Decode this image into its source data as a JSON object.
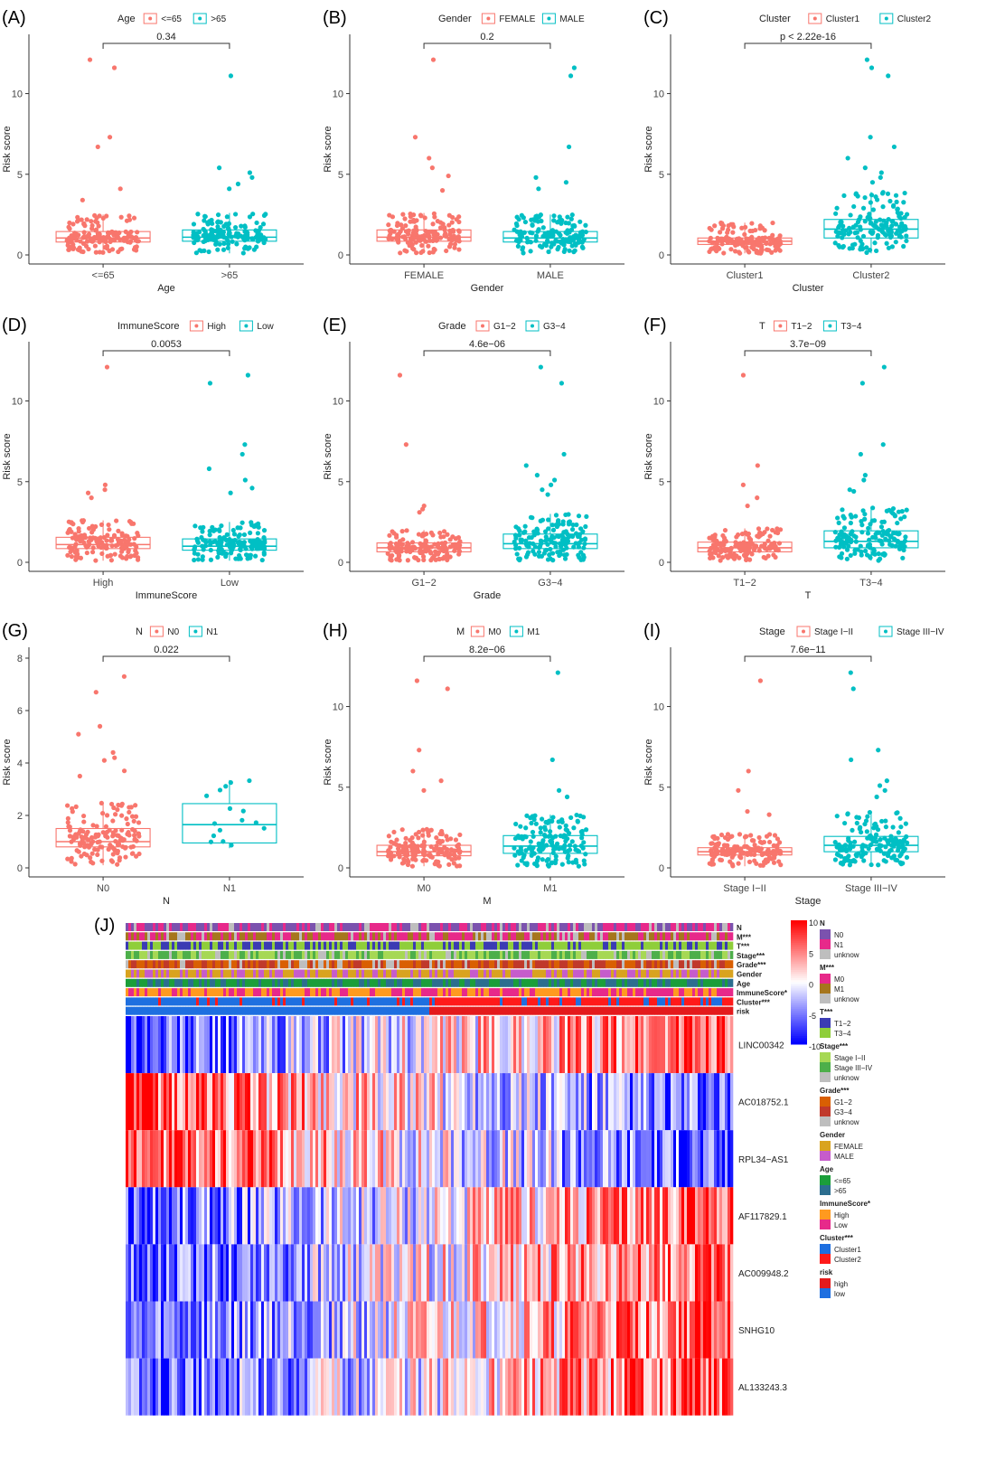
{
  "colors": {
    "group1": "#F8766D",
    "group2": "#00BFC4",
    "heat_high": "#FF0000",
    "heat_mid": "#FFFFFF",
    "heat_low": "#0000FF"
  },
  "panels": [
    {
      "tag": "(A)",
      "legend_title": "Age",
      "groups": [
        "<=65",
        ">65"
      ],
      "xlabel": "Age",
      "ylabel": "Risk score",
      "p": "0.34",
      "yticks": [
        0,
        5,
        10
      ],
      "ymax": 13
    },
    {
      "tag": "(B)",
      "legend_title": "Gender",
      "groups": [
        "FEMALE",
        "MALE"
      ],
      "xlabel": "Gender",
      "ylabel": "Risk score",
      "p": "0.2",
      "yticks": [
        0,
        5,
        10
      ],
      "ymax": 13
    },
    {
      "tag": "(C)",
      "legend_title": "Cluster",
      "groups": [
        "Cluster1",
        "Cluster2"
      ],
      "xlabel": "Cluster",
      "ylabel": "Risk score",
      "p": "p < 2.22e-16",
      "yticks": [
        0,
        5,
        10
      ],
      "ymax": 13
    },
    {
      "tag": "(D)",
      "legend_title": "ImmuneScore",
      "groups": [
        "High",
        "Low"
      ],
      "xlabel": "ImmuneScore",
      "ylabel": "Risk score",
      "p": "0.0053",
      "yticks": [
        0,
        5,
        10
      ],
      "ymax": 13
    },
    {
      "tag": "(E)",
      "legend_title": "Grade",
      "groups": [
        "G1−2",
        "G3−4"
      ],
      "xlabel": "Grade",
      "ylabel": "Risk score",
      "p": "4.6e−06",
      "yticks": [
        0,
        5,
        10
      ],
      "ymax": 13
    },
    {
      "tag": "(F)",
      "legend_title": "T",
      "groups": [
        "T1−2",
        "T3−4"
      ],
      "xlabel": "T",
      "ylabel": "Risk score",
      "p": "3.7e−09",
      "yticks": [
        0,
        5,
        10
      ],
      "ymax": 13
    },
    {
      "tag": "(G)",
      "legend_title": "N",
      "groups": [
        "N0",
        "N1"
      ],
      "xlabel": "N",
      "ylabel": "Risk score",
      "p": "0.022",
      "yticks": [
        0,
        2,
        4,
        6,
        8
      ],
      "ymax": 8
    },
    {
      "tag": "(H)",
      "legend_title": "M",
      "groups": [
        "M0",
        "M1"
      ],
      "xlabel": "M",
      "ylabel": "Risk score",
      "p": "8.2e−06",
      "yticks": [
        0,
        5,
        10
      ],
      "ymax": 13
    },
    {
      "tag": "(I)",
      "legend_title": "Stage",
      "groups": [
        "Stage I−II",
        "Stage III−IV"
      ],
      "xlabel": "Stage",
      "ylabel": "Risk score",
      "p": "7.6e−11",
      "yticks": [
        0,
        5,
        10
      ],
      "ymax": 13
    }
  ],
  "chart_data": [
    {
      "type": "box",
      "panel": "(A)",
      "categories": [
        "<=65",
        ">65"
      ],
      "box": [
        {
          "q1": 0.8,
          "median": 1.05,
          "q3": 1.45,
          "lower": 0.1,
          "upper": 2.5
        },
        {
          "q1": 0.85,
          "median": 1.1,
          "q3": 1.55,
          "lower": 0.1,
          "upper": 2.6
        }
      ],
      "outliers": [
        [
          12.1,
          11.6,
          7.3,
          6.7,
          4.1,
          3.4
        ],
        [
          11.1,
          5.4,
          5.1,
          4.8,
          4.4,
          4.1
        ]
      ],
      "ylim": [
        0,
        13
      ]
    },
    {
      "type": "box",
      "panel": "(B)",
      "categories": [
        "FEMALE",
        "MALE"
      ],
      "box": [
        {
          "q1": 0.85,
          "median": 1.1,
          "q3": 1.55,
          "lower": 0.1,
          "upper": 2.6
        },
        {
          "q1": 0.8,
          "median": 1.05,
          "q3": 1.45,
          "lower": 0.1,
          "upper": 2.5
        }
      ],
      "outliers": [
        [
          12.1,
          7.3,
          6.0,
          5.4,
          4.9,
          4.0
        ],
        [
          11.6,
          11.1,
          6.7,
          4.8,
          4.5,
          4.1
        ]
      ],
      "ylim": [
        0,
        13
      ]
    },
    {
      "type": "box",
      "panel": "(C)",
      "categories": [
        "Cluster1",
        "Cluster2"
      ],
      "box": [
        {
          "q1": 0.65,
          "median": 0.85,
          "q3": 1.05,
          "lower": 0.1,
          "upper": 2.0
        },
        {
          "q1": 1.05,
          "median": 1.6,
          "q3": 2.2,
          "lower": 0.1,
          "upper": 3.9
        }
      ],
      "outliers": [
        [],
        [
          12.1,
          11.6,
          11.1,
          7.3,
          6.7,
          6.0,
          5.4,
          5.1,
          4.8,
          4.5
        ]
      ],
      "ylim": [
        0,
        13
      ]
    },
    {
      "type": "box",
      "panel": "(D)",
      "categories": [
        "High",
        "Low"
      ],
      "box": [
        {
          "q1": 0.85,
          "median": 1.1,
          "q3": 1.55,
          "lower": 0.1,
          "upper": 2.6
        },
        {
          "q1": 0.75,
          "median": 1.0,
          "q3": 1.45,
          "lower": 0.1,
          "upper": 2.5
        }
      ],
      "outliers": [
        [
          12.1,
          4.8,
          4.5,
          4.3,
          4.0
        ],
        [
          11.6,
          11.1,
          7.3,
          6.7,
          5.8,
          5.1,
          4.6,
          4.3
        ]
      ],
      "ylim": [
        0,
        13
      ]
    },
    {
      "type": "box",
      "panel": "(E)",
      "categories": [
        "G1−2",
        "G3−4"
      ],
      "box": [
        {
          "q1": 0.65,
          "median": 0.9,
          "q3": 1.2,
          "lower": 0.1,
          "upper": 2.0
        },
        {
          "q1": 0.85,
          "median": 1.15,
          "q3": 1.75,
          "lower": 0.1,
          "upper": 3.0
        }
      ],
      "outliers": [
        [
          11.6,
          7.3,
          3.5,
          3.3,
          3.1
        ],
        [
          12.1,
          11.1,
          6.7,
          6.0,
          5.4,
          5.1,
          4.8,
          4.5,
          4.2
        ]
      ],
      "ylim": [
        0,
        13
      ]
    },
    {
      "type": "box",
      "panel": "(F)",
      "categories": [
        "T1−2",
        "T3−4"
      ],
      "box": [
        {
          "q1": 0.65,
          "median": 0.9,
          "q3": 1.25,
          "lower": 0.1,
          "upper": 2.1
        },
        {
          "q1": 0.9,
          "median": 1.3,
          "q3": 1.95,
          "lower": 0.1,
          "upper": 3.4
        }
      ],
      "outliers": [
        [
          11.6,
          6.0,
          4.8,
          4.0,
          3.5
        ],
        [
          12.1,
          11.1,
          7.3,
          6.7,
          5.4,
          5.1,
          4.5,
          4.4
        ]
      ],
      "ylim": [
        0,
        13
      ]
    },
    {
      "type": "box",
      "panel": "(G)",
      "categories": [
        "N0",
        "N1"
      ],
      "box": [
        {
          "q1": 0.8,
          "median": 1.0,
          "q3": 1.5,
          "lower": 0.1,
          "upper": 2.5
        },
        {
          "q1": 0.95,
          "median": 1.65,
          "q3": 2.45,
          "lower": 0.75,
          "upper": 3.35
        }
      ],
      "outliers": [
        [
          7.3,
          6.7,
          5.4,
          5.1,
          4.4,
          4.2,
          4.1,
          3.7,
          3.5
        ],
        []
      ],
      "ylim": [
        0,
        8
      ]
    },
    {
      "type": "box",
      "panel": "(H)",
      "categories": [
        "M0",
        "M1"
      ],
      "box": [
        {
          "q1": 0.75,
          "median": 1.0,
          "q3": 1.4,
          "lower": 0.1,
          "upper": 2.4
        },
        {
          "q1": 0.9,
          "median": 1.35,
          "q3": 2.0,
          "lower": 0.1,
          "upper": 3.3
        }
      ],
      "outliers": [
        [
          11.6,
          11.1,
          7.3,
          6.0,
          5.4,
          4.8
        ],
        [
          12.1,
          6.7,
          4.8,
          4.4
        ]
      ],
      "ylim": [
        0,
        13
      ]
    },
    {
      "type": "box",
      "panel": "(I)",
      "categories": [
        "Stage I−II",
        "Stage III−IV"
      ],
      "box": [
        {
          "q1": 0.8,
          "median": 1.0,
          "q3": 1.25,
          "lower": 0.1,
          "upper": 2.1
        },
        {
          "q1": 1.0,
          "median": 1.4,
          "q3": 1.95,
          "lower": 0.1,
          "upper": 3.5
        }
      ],
      "outliers": [
        [
          11.6,
          6.0,
          4.8,
          3.5,
          3.3
        ],
        [
          12.1,
          11.1,
          7.3,
          6.7,
          5.4,
          5.1,
          4.8,
          4.4
        ]
      ],
      "ylim": [
        0,
        13
      ]
    },
    {
      "type": "heatmap",
      "panel": "(J)",
      "annotation_rows": [
        "N",
        "M***",
        "T***",
        "Stage***",
        "Grade***",
        "Gender",
        "Age",
        "ImmuneScore*",
        "Cluster***",
        "risk"
      ],
      "genes": [
        "LINC00342",
        "AC018752.1",
        "RPL34−AS1",
        "AF117829.1",
        "AC009948.2",
        "SNHG10",
        "AL133243.3"
      ],
      "color_scale": {
        "ticks": [
          10,
          5,
          0,
          -5,
          -10
        ],
        "high": "#FF0000",
        "mid": "#FFFFFF",
        "low": "#0000FF"
      },
      "legend": [
        {
          "title": "N",
          "items": [
            {
              "label": "N0",
              "color": "#7B52AE"
            },
            {
              "label": "N1",
              "color": "#E7298A"
            },
            {
              "label": "unknow",
              "color": "#BEBEBE"
            }
          ]
        },
        {
          "title": "M***",
          "items": [
            {
              "label": "M0",
              "color": "#E7298A"
            },
            {
              "label": "M1",
              "color": "#A6761D"
            },
            {
              "label": "unknow",
              "color": "#BEBEBE"
            }
          ]
        },
        {
          "title": "T***",
          "items": [
            {
              "label": "T1−2",
              "color": "#3B3BB3"
            },
            {
              "label": "T3−4",
              "color": "#8FCE3A"
            }
          ]
        },
        {
          "title": "Stage***",
          "items": [
            {
              "label": "Stage I−II",
              "color": "#A6D854"
            },
            {
              "label": "Stage III−IV",
              "color": "#4DAF4A"
            },
            {
              "label": "unknow",
              "color": "#BEBEBE"
            }
          ]
        },
        {
          "title": "Grade***",
          "items": [
            {
              "label": "G1−2",
              "color": "#D95F02"
            },
            {
              "label": "G3−4",
              "color": "#C0392B"
            },
            {
              "label": "unknow",
              "color": "#BEBEBE"
            }
          ]
        },
        {
          "title": "Gender",
          "items": [
            {
              "label": "FEMALE",
              "color": "#D9A31F"
            },
            {
              "label": "MALE",
              "color": "#C65CCB"
            }
          ]
        },
        {
          "title": "Age",
          "items": [
            {
              "label": "<=65",
              "color": "#1B9E3A"
            },
            {
              "label": ">65",
              "color": "#2C6E8F"
            }
          ]
        },
        {
          "title": "ImmuneScore*",
          "items": [
            {
              "label": "High",
              "color": "#FF9A1F"
            },
            {
              "label": "Low",
              "color": "#E7298A"
            }
          ]
        },
        {
          "title": "Cluster***",
          "items": [
            {
              "label": "Cluster1",
              "color": "#1E6FE0"
            },
            {
              "label": "Cluster2",
              "color": "#FF1A1A"
            }
          ]
        },
        {
          "title": "risk",
          "items": [
            {
              "label": "high",
              "color": "#E41A1C"
            },
            {
              "label": "low",
              "color": "#1E6FE0"
            }
          ]
        }
      ]
    }
  ]
}
